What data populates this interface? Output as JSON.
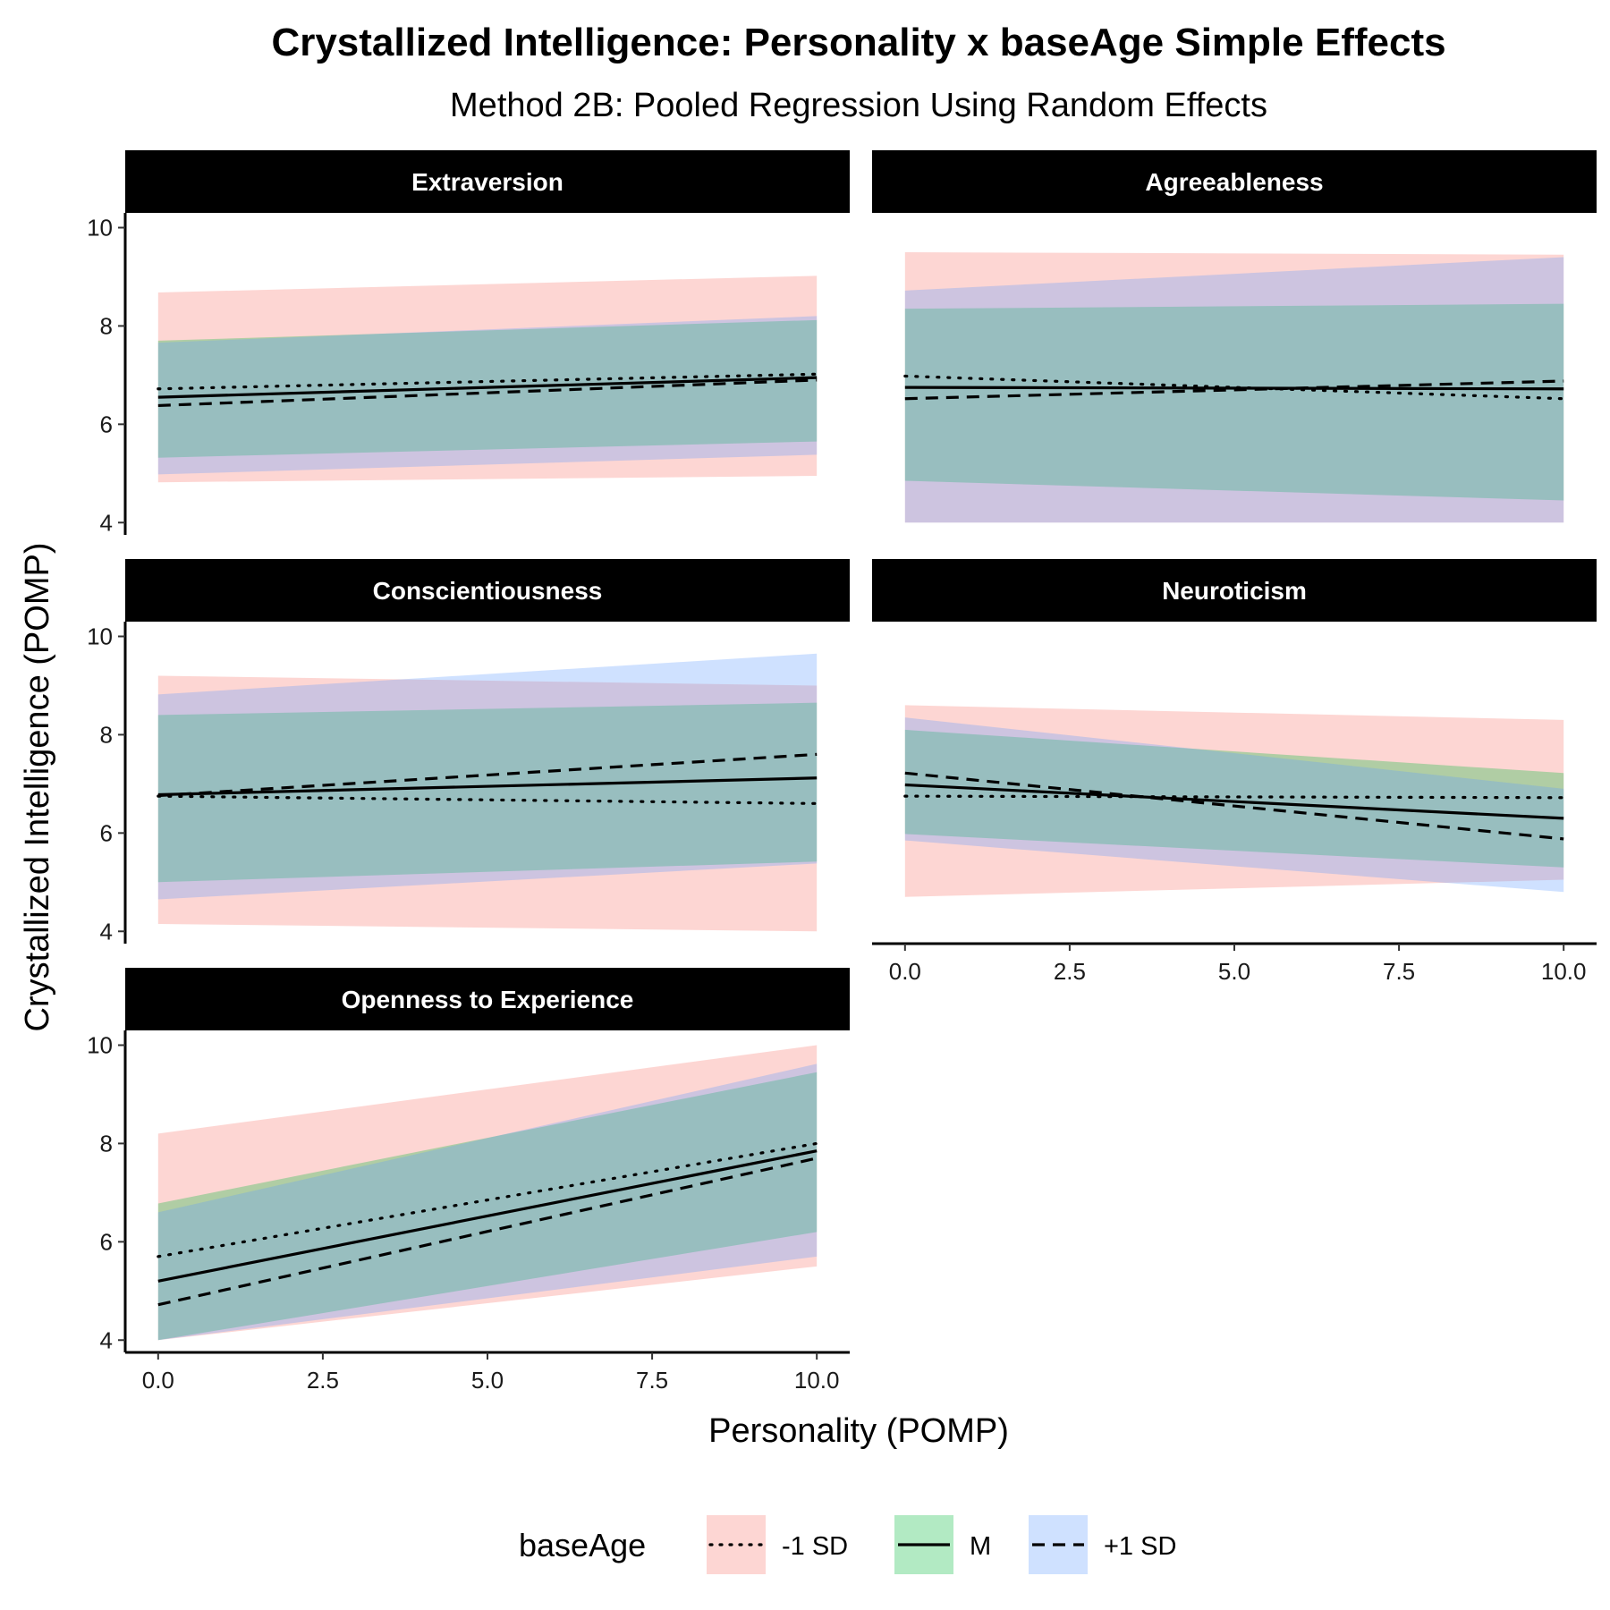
{
  "chart_data": {
    "type": "line",
    "title": "Crystallized Intelligence: Personality x baseAge Simple Effects",
    "subtitle": "Method 2B: Pooled Regression Using Random Effects",
    "xlabel": "Personality (POMP)",
    "ylabel": "Crystallized Intelligence (POMP)",
    "xlim": [
      -0.5,
      10.5
    ],
    "ylim": [
      3.75,
      10.3
    ],
    "x_ticks": [
      "0.0",
      "2.5",
      "5.0",
      "7.5",
      "10.0"
    ],
    "y_ticks": [
      "4",
      "6",
      "8",
      "10"
    ],
    "legend": {
      "title": "baseAge",
      "position": "bottom",
      "items": [
        {
          "label": "-1 SD",
          "linetype": "dotted",
          "fill": "#f8766d"
        },
        {
          "label": "M",
          "linetype": "solid",
          "fill": "#00ba38"
        },
        {
          "label": "+1 SD",
          "linetype": "dashed",
          "fill": "#619cff"
        }
      ]
    },
    "colors": {
      "-1 SD": "#f8766d",
      "M": "#00ba38",
      "+1 SD": "#619cff",
      "strip": "#000000"
    },
    "panels": [
      {
        "name": "Extraversion",
        "series": [
          {
            "name": "-1 SD",
            "x": [
              0,
              10
            ],
            "y": [
              6.72,
              7.02
            ],
            "lower": [
              4.82,
              4.95
            ],
            "upper": [
              8.68,
              9.02
            ]
          },
          {
            "name": "M",
            "x": [
              0,
              10
            ],
            "y": [
              6.55,
              6.95
            ],
            "lower": [
              5.32,
              5.65
            ],
            "upper": [
              7.7,
              8.12
            ]
          },
          {
            "name": "+1 SD",
            "x": [
              0,
              10
            ],
            "y": [
              6.38,
              6.9
            ],
            "lower": [
              4.98,
              5.38
            ],
            "upper": [
              7.66,
              8.2
            ]
          }
        ]
      },
      {
        "name": "Agreeableness",
        "series": [
          {
            "name": "-1 SD",
            "x": [
              0,
              10
            ],
            "y": [
              6.98,
              6.52
            ],
            "lower": [
              4.0,
              4.0
            ],
            "upper": [
              9.5,
              9.45
            ]
          },
          {
            "name": "M",
            "x": [
              0,
              10
            ],
            "y": [
              6.75,
              6.72
            ],
            "lower": [
              4.85,
              4.45
            ],
            "upper": [
              8.35,
              8.45
            ]
          },
          {
            "name": "+1 SD",
            "x": [
              0,
              10
            ],
            "y": [
              6.52,
              6.88
            ],
            "lower": [
              4.0,
              4.0
            ],
            "upper": [
              8.72,
              9.4
            ]
          }
        ]
      },
      {
        "name": "Conscientiousness",
        "series": [
          {
            "name": "-1 SD",
            "x": [
              0,
              10
            ],
            "y": [
              6.75,
              6.6
            ],
            "lower": [
              4.15,
              4.0
            ],
            "upper": [
              9.2,
              9.0
            ]
          },
          {
            "name": "M",
            "x": [
              0,
              10
            ],
            "y": [
              6.78,
              7.12
            ],
            "lower": [
              5.0,
              5.42
            ],
            "upper": [
              8.4,
              8.65
            ]
          },
          {
            "name": "+1 SD",
            "x": [
              0,
              10
            ],
            "y": [
              6.76,
              7.6
            ],
            "lower": [
              4.65,
              5.38
            ],
            "upper": [
              8.82,
              9.65
            ]
          }
        ]
      },
      {
        "name": "Neuroticism",
        "series": [
          {
            "name": "-1 SD",
            "x": [
              0,
              10
            ],
            "y": [
              6.75,
              6.72
            ],
            "lower": [
              4.7,
              5.05
            ],
            "upper": [
              8.6,
              8.3
            ]
          },
          {
            "name": "M",
            "x": [
              0,
              10
            ],
            "y": [
              6.98,
              6.3
            ],
            "lower": [
              5.98,
              5.3
            ],
            "upper": [
              8.1,
              7.22
            ]
          },
          {
            "name": "+1 SD",
            "x": [
              0,
              10
            ],
            "y": [
              7.22,
              5.88
            ],
            "lower": [
              5.85,
              4.8
            ],
            "upper": [
              8.35,
              6.9
            ]
          }
        ]
      },
      {
        "name": "Openness to Experience",
        "series": [
          {
            "name": "-1 SD",
            "x": [
              0,
              10
            ],
            "y": [
              5.7,
              8.0
            ],
            "lower": [
              4.0,
              5.5
            ],
            "upper": [
              8.2,
              10.0
            ]
          },
          {
            "name": "M",
            "x": [
              0,
              10
            ],
            "y": [
              5.2,
              7.85
            ],
            "lower": [
              4.0,
              6.2
            ],
            "upper": [
              6.78,
              9.45
            ]
          },
          {
            "name": "+1 SD",
            "x": [
              0,
              10
            ],
            "y": [
              4.72,
              7.7
            ],
            "lower": [
              4.0,
              5.7
            ],
            "upper": [
              6.6,
              9.62
            ]
          }
        ]
      }
    ]
  }
}
